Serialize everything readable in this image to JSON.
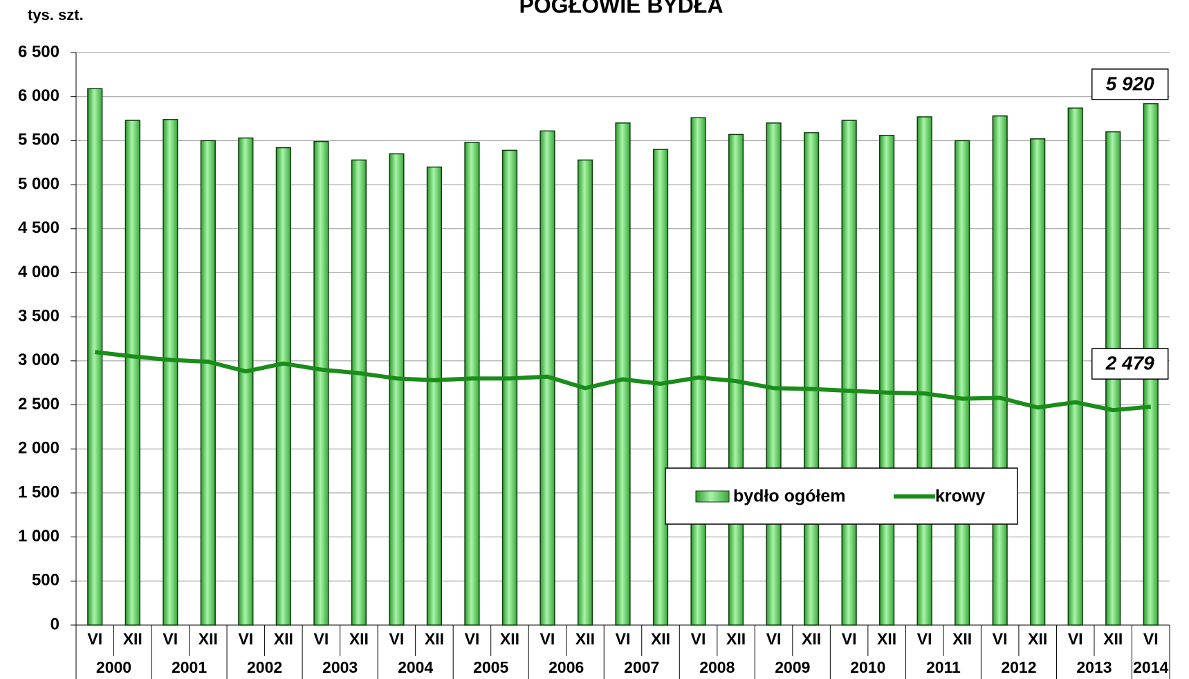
{
  "chart_data": {
    "type": "bar",
    "title": "POGŁOWIE BYDŁA",
    "y_axis_label": "tys. szt.",
    "categories": [
      "VI",
      "XII",
      "VI",
      "XII",
      "VI",
      "XII",
      "VI",
      "XII",
      "VI",
      "XII",
      "VI",
      "XII",
      "VI",
      "XII",
      "VI",
      "XII",
      "VI",
      "XII",
      "VI",
      "XII",
      "VI",
      "XII",
      "VI",
      "XII",
      "VI",
      "XII",
      "VI",
      "XII",
      "VI"
    ],
    "years": [
      "2000",
      "2001",
      "2002",
      "2003",
      "2004",
      "2005",
      "2006",
      "2007",
      "2008",
      "2009",
      "2010",
      "2011",
      "2012",
      "2013",
      "2014"
    ],
    "ylim": [
      0,
      6500
    ],
    "yticks": [
      0,
      500,
      {
        "value": 1000,
        "label": "1 000"
      },
      {
        "value": 1500,
        "label": "1 500"
      },
      {
        "value": 2000,
        "label": "2 000"
      },
      {
        "value": 2500,
        "label": "2 500"
      },
      {
        "value": 3000,
        "label": "3 000"
      },
      {
        "value": 3500,
        "label": "3 500"
      },
      {
        "value": 4000,
        "label": "4 000"
      },
      {
        "value": 4500,
        "label": "4 500"
      },
      {
        "value": 5000,
        "label": "5 000"
      },
      {
        "value": 5500,
        "label": "5 500"
      },
      {
        "value": 6000,
        "label": "6 000"
      },
      {
        "value": 6500,
        "label": "6 500"
      }
    ],
    "grid": true,
    "legend": "lower-right",
    "series": [
      {
        "name": "bydło ogółem",
        "type": "bar",
        "color": "#66e066",
        "values": [
          6090,
          5730,
          5740,
          5500,
          5530,
          5420,
          5490,
          5280,
          5350,
          5200,
          5480,
          5390,
          5610,
          5280,
          5700,
          5400,
          5760,
          5570,
          5700,
          5590,
          5730,
          5560,
          5770,
          5500,
          5780,
          5520,
          5870,
          5600,
          5920
        ],
        "value_labels": [
          null,
          null,
          null,
          null,
          null,
          null,
          null,
          null,
          null,
          null,
          null,
          null,
          null,
          null,
          null,
          null,
          null,
          null,
          null,
          null,
          null,
          null,
          null,
          null,
          null,
          null,
          null,
          null,
          "5 920"
        ]
      },
      {
        "name": "krowy",
        "type": "line",
        "color": "#1a8c1a",
        "values": [
          3100,
          3050,
          3010,
          2990,
          2880,
          2970,
          2900,
          2860,
          2800,
          2780,
          2800,
          2800,
          2820,
          2690,
          2790,
          2740,
          2810,
          2770,
          2690,
          2680,
          2660,
          2640,
          2630,
          2570,
          2580,
          2470,
          2530,
          2440,
          2479
        ],
        "value_labels": [
          null,
          null,
          null,
          null,
          null,
          null,
          null,
          null,
          null,
          null,
          null,
          null,
          null,
          null,
          null,
          null,
          null,
          null,
          null,
          null,
          null,
          null,
          null,
          null,
          null,
          null,
          null,
          null,
          "2 479"
        ]
      }
    ]
  }
}
